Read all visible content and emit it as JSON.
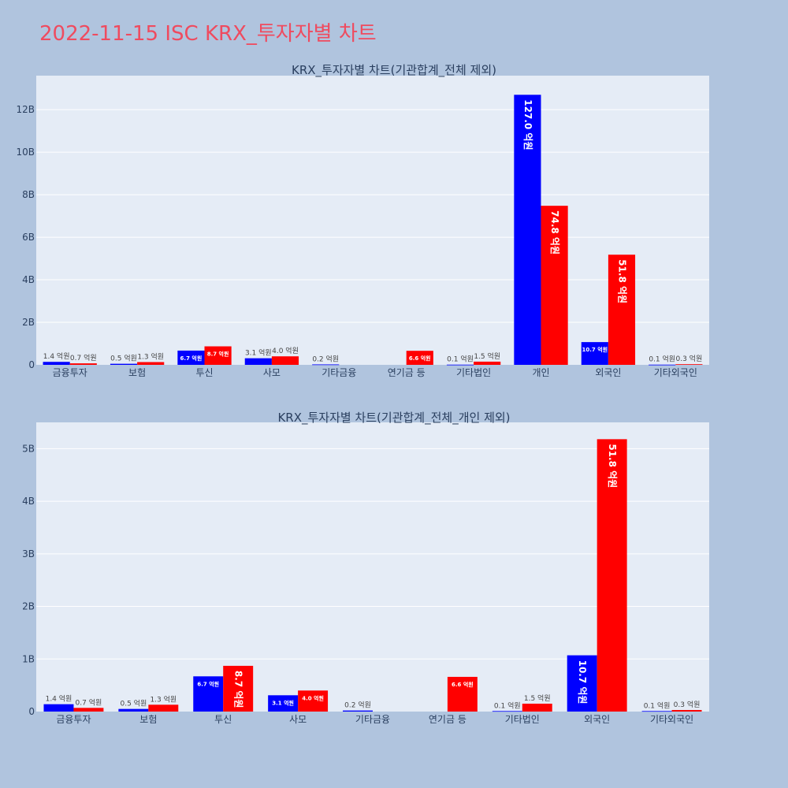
{
  "title": "2022-11-15 ISC KRX_투자자별 차트",
  "colors": {
    "buy": "#0000ff",
    "sell": "#ff0000",
    "plot_bg": "#e5ecf6",
    "page_bg": "#b0c4de",
    "title": "#ef4b5f"
  },
  "chart_data": [
    {
      "type": "bar",
      "title": "KRX_투자자별 차트(기관합계_전체 제외)",
      "categories": [
        "금융투자",
        "보험",
        "투신",
        "사모",
        "기타금융",
        "연기금 등",
        "기타법인",
        "개인",
        "외국인",
        "기타외국인"
      ],
      "series": [
        {
          "values": [
            140000000,
            50000000,
            670000000,
            310000000,
            20000000,
            0,
            10000000,
            12700000000,
            1070000000,
            10000000
          ],
          "labels": [
            "1.4 억원",
            "0.5 억원",
            "6.7 억원",
            "3.1 억원",
            "0.2 억원",
            "",
            "0.1 억원",
            "127.0 억원",
            "10.7 억원",
            "0.1 억원"
          ]
        },
        {
          "values": [
            70000000,
            130000000,
            870000000,
            400000000,
            0,
            660000000,
            150000000,
            7480000000,
            5180000000,
            30000000
          ],
          "labels": [
            "0.7 억원",
            "1.3 억원",
            "8.7 억원",
            "4.0 억원",
            "",
            "6.6 억원",
            "1.5 억원",
            "74.8 억원",
            "51.8 억원",
            "0.3 억원"
          ]
        }
      ],
      "yticks": [
        0,
        2000000000,
        4000000000,
        6000000000,
        8000000000,
        10000000000,
        12000000000
      ],
      "yticklabels": [
        "0",
        "2B",
        "4B",
        "6B",
        "8B",
        "10B",
        "12B"
      ],
      "ylim": [
        0,
        13600000000
      ],
      "grid": true
    },
    {
      "type": "bar",
      "title": "KRX_투자자별 차트(기관합계_전체_개인 제외)",
      "categories": [
        "금융투자",
        "보험",
        "투신",
        "사모",
        "기타금융",
        "연기금 등",
        "기타법인",
        "외국인",
        "기타외국인"
      ],
      "series": [
        {
          "values": [
            140000000,
            50000000,
            670000000,
            310000000,
            20000000,
            0,
            10000000,
            1070000000,
            10000000
          ],
          "labels": [
            "1.4 억원",
            "0.5 억원",
            "6.7 억원",
            "3.1 억원",
            "0.2 억원",
            "",
            "0.1 억원",
            "10.7 억원",
            "0.1 억원"
          ]
        },
        {
          "values": [
            70000000,
            130000000,
            870000000,
            400000000,
            0,
            660000000,
            150000000,
            5180000000,
            30000000
          ],
          "labels": [
            "0.7 억원",
            "1.3 억원",
            "8.7 억원",
            "4.0 억원",
            "",
            "6.6 억원",
            "1.5 억원",
            "51.8 억원",
            "0.3 억원"
          ]
        }
      ],
      "yticks": [
        0,
        1000000000,
        2000000000,
        3000000000,
        4000000000,
        5000000000
      ],
      "yticklabels": [
        "0",
        "1B",
        "2B",
        "3B",
        "4B",
        "5B"
      ],
      "ylim": [
        0,
        5500000000
      ],
      "grid": true
    }
  ]
}
